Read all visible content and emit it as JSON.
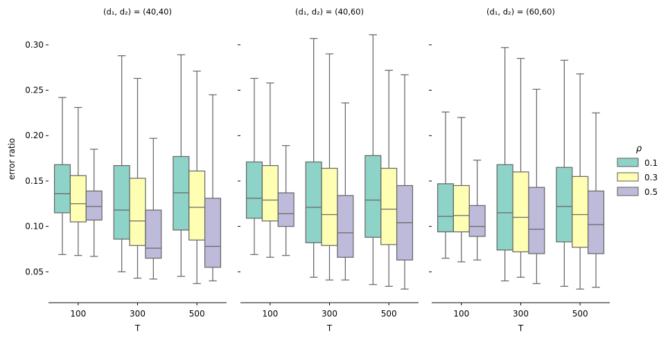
{
  "chart_data": {
    "type": "box",
    "shared_y": true,
    "ylabel": "error ratio",
    "ylim": [
      0.016,
      0.325
    ],
    "yticks": [
      0.05,
      0.1,
      0.15,
      0.2,
      0.25,
      0.3
    ],
    "ytick_labels": [
      "0.05",
      "0.10",
      "0.15",
      "0.20",
      "0.25",
      "0.30"
    ],
    "legend": {
      "title": "ρ",
      "location": "right",
      "entries": [
        {
          "label": "0.1",
          "color": "#8dd3c7"
        },
        {
          "label": "0.3",
          "color": "#ffffb3"
        },
        {
          "label": "0.5",
          "color": "#bebada"
        }
      ]
    },
    "panels": [
      {
        "title_prefix": "(d₁, d₂) = ",
        "title_value": "(40,40)",
        "xlabel": "T",
        "categories": [
          "100",
          "300",
          "500"
        ],
        "series": [
          {
            "name": "0.1",
            "boxes": [
              {
                "min": 0.069,
                "q1": 0.115,
                "median": 0.136,
                "q3": 0.168,
                "max": 0.242
              },
              {
                "min": 0.05,
                "q1": 0.086,
                "median": 0.118,
                "q3": 0.167,
                "max": 0.288
              },
              {
                "min": 0.045,
                "q1": 0.096,
                "median": 0.137,
                "q3": 0.177,
                "max": 0.289
              }
            ]
          },
          {
            "name": "0.3",
            "boxes": [
              {
                "min": 0.068,
                "q1": 0.105,
                "median": 0.125,
                "q3": 0.156,
                "max": 0.231
              },
              {
                "min": 0.043,
                "q1": 0.079,
                "median": 0.106,
                "q3": 0.153,
                "max": 0.263
              },
              {
                "min": 0.037,
                "q1": 0.085,
                "median": 0.121,
                "q3": 0.161,
                "max": 0.271
              }
            ]
          },
          {
            "name": "0.5",
            "boxes": [
              {
                "min": 0.067,
                "q1": 0.107,
                "median": 0.122,
                "q3": 0.139,
                "max": 0.185
              },
              {
                "min": 0.042,
                "q1": 0.065,
                "median": 0.076,
                "q3": 0.118,
                "max": 0.197
              },
              {
                "min": 0.04,
                "q1": 0.055,
                "median": 0.078,
                "q3": 0.131,
                "max": 0.245
              }
            ]
          }
        ]
      },
      {
        "title_prefix": "(d₁, d₂) = ",
        "title_value": "(40,60)",
        "xlabel": "T",
        "categories": [
          "100",
          "300",
          "500"
        ],
        "series": [
          {
            "name": "0.1",
            "boxes": [
              {
                "min": 0.069,
                "q1": 0.109,
                "median": 0.131,
                "q3": 0.171,
                "max": 0.263
              },
              {
                "min": 0.044,
                "q1": 0.082,
                "median": 0.121,
                "q3": 0.171,
                "max": 0.307
              },
              {
                "min": 0.036,
                "q1": 0.088,
                "median": 0.129,
                "q3": 0.178,
                "max": 0.311
              }
            ]
          },
          {
            "name": "0.3",
            "boxes": [
              {
                "min": 0.066,
                "q1": 0.106,
                "median": 0.129,
                "q3": 0.167,
                "max": 0.258
              },
              {
                "min": 0.041,
                "q1": 0.079,
                "median": 0.113,
                "q3": 0.164,
                "max": 0.29
              },
              {
                "min": 0.034,
                "q1": 0.08,
                "median": 0.119,
                "q3": 0.164,
                "max": 0.272
              }
            ]
          },
          {
            "name": "0.5",
            "boxes": [
              {
                "min": 0.068,
                "q1": 0.1,
                "median": 0.114,
                "q3": 0.137,
                "max": 0.189
              },
              {
                "min": 0.041,
                "q1": 0.066,
                "median": 0.093,
                "q3": 0.134,
                "max": 0.236
              },
              {
                "min": 0.031,
                "q1": 0.063,
                "median": 0.104,
                "q3": 0.145,
                "max": 0.267
              }
            ]
          }
        ]
      },
      {
        "title_prefix": "(d₁, d₂) = ",
        "title_value": "(60,60)",
        "xlabel": "T",
        "categories": [
          "100",
          "300",
          "500"
        ],
        "series": [
          {
            "name": "0.1",
            "boxes": [
              {
                "min": 0.065,
                "q1": 0.094,
                "median": 0.111,
                "q3": 0.147,
                "max": 0.226
              },
              {
                "min": 0.04,
                "q1": 0.074,
                "median": 0.115,
                "q3": 0.168,
                "max": 0.297
              },
              {
                "min": 0.034,
                "q1": 0.083,
                "median": 0.122,
                "q3": 0.165,
                "max": 0.283
              }
            ]
          },
          {
            "name": "0.3",
            "boxes": [
              {
                "min": 0.061,
                "q1": 0.094,
                "median": 0.112,
                "q3": 0.145,
                "max": 0.22
              },
              {
                "min": 0.044,
                "q1": 0.072,
                "median": 0.11,
                "q3": 0.16,
                "max": 0.285
              },
              {
                "min": 0.031,
                "q1": 0.077,
                "median": 0.113,
                "q3": 0.155,
                "max": 0.268
              }
            ]
          },
          {
            "name": "0.5",
            "boxes": [
              {
                "min": 0.063,
                "q1": 0.089,
                "median": 0.1,
                "q3": 0.123,
                "max": 0.173
              },
              {
                "min": 0.037,
                "q1": 0.07,
                "median": 0.097,
                "q3": 0.143,
                "max": 0.251
              },
              {
                "min": 0.033,
                "q1": 0.07,
                "median": 0.102,
                "q3": 0.139,
                "max": 0.225
              }
            ]
          }
        ]
      }
    ],
    "style": {
      "line_color": "#666666",
      "axis_color": "#000000"
    }
  }
}
